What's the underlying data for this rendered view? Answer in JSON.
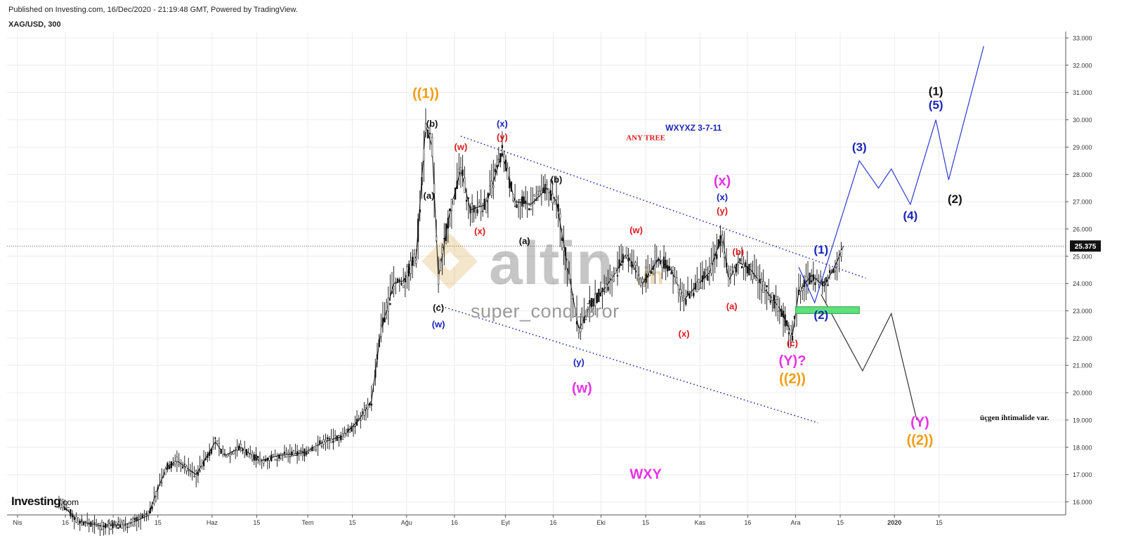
{
  "header": {
    "published": "Published on Investing.com, 16/Dec/2020 - 21:19:48 GMT, Powered by TradingView.",
    "symbol": "XAG/USD, 300"
  },
  "branding": {
    "logo_main": "Investing",
    "logo_suffix": ".com",
    "watermark_brand": "altin",
    "watermark_brand_suffix": ".in",
    "watermark_author": "super_conqueror"
  },
  "colors": {
    "orange": "#f39c12",
    "black": "#111111",
    "blue": "#1a24b8",
    "red": "#e0181e",
    "magenta": "#e633e6",
    "green_zone": "#5ee07a",
    "price_tag": "#111111",
    "watermark_gold": "#d9a441"
  },
  "chart_data": {
    "type": "line",
    "title": "XAG/USD, 300",
    "xlabel": "",
    "ylabel": "",
    "ylim": [
      15.75,
      33.2
    ],
    "x_axis_labels": [
      "Nis",
      "16",
      "May",
      "15",
      "Haz",
      "15",
      "Tem",
      "15",
      "Ağu",
      "16",
      "Eyl",
      "16",
      "Eki",
      "15",
      "Kas",
      "16",
      "Ara",
      "15",
      "2020",
      "15"
    ],
    "y_axis_labels": [
      "16.000",
      "17.000",
      "18.000",
      "19.000",
      "20.000",
      "21.000",
      "22.000",
      "23.000",
      "24.000",
      "25.000",
      "26.000",
      "27.000",
      "28.000",
      "29.000",
      "30.000",
      "31.000",
      "32.000",
      "33.000"
    ],
    "last_price": "25.375",
    "series": [
      {
        "style": "candles (approximate close path)",
        "points": [
          [
            "2020-04-14",
            16.0
          ],
          [
            "2020-04-20",
            15.3
          ],
          [
            "2020-04-28",
            15.1
          ],
          [
            "2020-05-06",
            15.2
          ],
          [
            "2020-05-12",
            15.5
          ],
          [
            "2020-05-15",
            16.5
          ],
          [
            "2020-05-18",
            17.3
          ],
          [
            "2020-05-21",
            17.5
          ],
          [
            "2020-05-27",
            17.0
          ],
          [
            "2020-06-02",
            18.2
          ],
          [
            "2020-06-05",
            17.7
          ],
          [
            "2020-06-10",
            18.0
          ],
          [
            "2020-06-16",
            17.5
          ],
          [
            "2020-06-22",
            17.7
          ],
          [
            "2020-06-30",
            17.8
          ],
          [
            "2020-07-06",
            18.2
          ],
          [
            "2020-07-12",
            18.4
          ],
          [
            "2020-07-17",
            19.0
          ],
          [
            "2020-07-21",
            19.7
          ],
          [
            "2020-07-24",
            22.3
          ],
          [
            "2020-07-28",
            24.0
          ],
          [
            "2020-07-31",
            24.1
          ],
          [
            "2020-08-04",
            25.0
          ],
          [
            "2020-08-07",
            29.8
          ],
          [
            "2020-08-09",
            29.0
          ],
          [
            "2020-08-11",
            24.2
          ],
          [
            "2020-08-14",
            26.3
          ],
          [
            "2020-08-18",
            28.2
          ],
          [
            "2020-08-21",
            26.7
          ],
          [
            "2020-08-26",
            26.9
          ],
          [
            "2020-08-31",
            28.8
          ],
          [
            "2020-09-04",
            27.0
          ],
          [
            "2020-09-09",
            26.9
          ],
          [
            "2020-09-14",
            27.5
          ],
          [
            "2020-09-17",
            27.0
          ],
          [
            "2020-09-21",
            24.3
          ],
          [
            "2020-09-24",
            22.3
          ],
          [
            "2020-09-28",
            23.3
          ],
          [
            "2020-10-02",
            23.8
          ],
          [
            "2020-10-05",
            24.3
          ],
          [
            "2020-10-09",
            25.1
          ],
          [
            "2020-10-14",
            24.0
          ],
          [
            "2020-10-19",
            24.9
          ],
          [
            "2020-10-23",
            24.5
          ],
          [
            "2020-10-27",
            23.4
          ],
          [
            "2020-10-30",
            23.8
          ],
          [
            "2020-11-04",
            24.4
          ],
          [
            "2020-11-08",
            25.8
          ],
          [
            "2020-11-10",
            24.1
          ],
          [
            "2020-11-13",
            24.8
          ],
          [
            "2020-11-17",
            24.5
          ],
          [
            "2020-11-22",
            23.7
          ],
          [
            "2020-11-26",
            23.1
          ],
          [
            "2020-11-30",
            22.1
          ],
          [
            "2020-12-02",
            23.7
          ],
          [
            "2020-12-06",
            24.3
          ],
          [
            "2020-12-10",
            23.9
          ],
          [
            "2020-12-14",
            24.8
          ],
          [
            "2020-12-16",
            25.375
          ]
        ]
      },
      {
        "name": "",
        "style": "blue projection",
        "points": [
          [
            "2020-12-02",
            24.6
          ],
          [
            "2020-12-07",
            23.3
          ],
          [
            "2020-12-21",
            28.5
          ],
          [
            "2020-12-27",
            27.5
          ],
          [
            "2020-12-31",
            28.2
          ],
          [
            "2021-01-06",
            26.9
          ],
          [
            "2021-01-14",
            30.0
          ],
          [
            "2021-01-18",
            27.8
          ],
          [
            "2021-01-29",
            32.7
          ]
        ]
      },
      {
        "name": "",
        "style": "black projection",
        "points": [
          [
            "2020-12-09",
            23.6
          ],
          [
            "2020-12-22",
            20.8
          ],
          [
            "2020-12-31",
            22.9
          ],
          [
            "2021-01-08",
            19.0
          ]
        ]
      },
      {
        "name": "",
        "style": "blue dotted channel top",
        "points": [
          [
            "2020-08-18",
            29.4
          ],
          [
            "2020-12-23",
            24.2
          ]
        ]
      },
      {
        "name": "",
        "style": "blue dotted channel bottom",
        "points": [
          [
            "2020-08-11",
            23.2
          ],
          [
            "2020-12-08",
            18.9
          ]
        ]
      }
    ],
    "annotations": [
      {
        "text": "((1))",
        "color": "orange",
        "x": "2020-08-07",
        "y": 30.8
      },
      {
        "text": "(b)",
        "color": "black",
        "x": "2020-08-09",
        "y": 29.75
      },
      {
        "text": "(a)",
        "color": "black",
        "x": "2020-08-08",
        "y": 27.1
      },
      {
        "text": "(c)",
        "color": "black",
        "x": "2020-08-11",
        "y": 23.0
      },
      {
        "text": "(w)",
        "color": "blue",
        "x": "2020-08-11",
        "y": 22.4
      },
      {
        "text": "(w)",
        "color": "red",
        "x": "2020-08-18",
        "y": 28.9
      },
      {
        "text": "(x)",
        "color": "blue",
        "x": "2020-08-31",
        "y": 29.75
      },
      {
        "text": "(y)",
        "color": "red",
        "x": "2020-08-31",
        "y": 29.25
      },
      {
        "text": "(x)",
        "color": "red",
        "x": "2020-08-24",
        "y": 25.8
      },
      {
        "text": "(a)",
        "color": "black",
        "x": "2020-09-07",
        "y": 25.45
      },
      {
        "text": "(b)",
        "color": "black",
        "x": "2020-09-17",
        "y": 27.7
      },
      {
        "text": "(y)",
        "color": "blue",
        "x": "2020-09-24",
        "y": 21.0
      },
      {
        "text": "(w)",
        "color": "magenta",
        "x": "2020-09-25",
        "y": 20.0
      },
      {
        "text": "ANY TREE",
        "color": "red",
        "x": "2020-10-15",
        "y": 29.25
      },
      {
        "text": "WXYXZ   3-7-11",
        "color": "blue",
        "x": "2020-10-30",
        "y": 29.6
      },
      {
        "text": "(w)",
        "color": "red",
        "x": "2020-10-12",
        "y": 25.85
      },
      {
        "text": "(x)",
        "color": "red",
        "x": "2020-10-27",
        "y": 22.05
      },
      {
        "text": "(x)",
        "color": "magenta",
        "x": "2020-11-08",
        "y": 27.6
      },
      {
        "text": "(x)",
        "color": "blue",
        "x": "2020-11-08",
        "y": 27.05
      },
      {
        "text": "(y)",
        "color": "red",
        "x": "2020-11-08",
        "y": 26.55
      },
      {
        "text": "(b)",
        "color": "red",
        "x": "2020-11-13",
        "y": 25.05
      },
      {
        "text": "(a)",
        "color": "red",
        "x": "2020-11-11",
        "y": 23.05
      },
      {
        "text": "(c)",
        "color": "red",
        "x": "2020-11-30",
        "y": 21.7
      },
      {
        "text": "(Y)?",
        "color": "magenta",
        "x": "2020-11-30",
        "y": 21.0
      },
      {
        "text": "((2))",
        "color": "orange",
        "x": "2020-11-30",
        "y": 20.35
      },
      {
        "text": "(1)",
        "color": "blue",
        "x": "2020-12-09",
        "y": 25.1
      },
      {
        "text": "(2)",
        "color": "blue",
        "x": "2020-12-09",
        "y": 22.7
      },
      {
        "text": "(3)",
        "color": "blue",
        "x": "2020-12-21",
        "y": 28.85
      },
      {
        "text": "(4)",
        "color": "blue",
        "x": "2021-01-06",
        "y": 26.35
      },
      {
        "text": "(1)",
        "color": "black",
        "x": "2021-01-14",
        "y": 30.9
      },
      {
        "text": "(5)",
        "color": "blue",
        "x": "2021-01-14",
        "y": 30.4
      },
      {
        "text": "(2)",
        "color": "black",
        "x": "2021-01-20",
        "y": 26.95
      },
      {
        "text": "(Y)",
        "color": "magenta",
        "x": "2021-01-09",
        "y": 18.75
      },
      {
        "text": "((2))",
        "color": "orange",
        "x": "2021-01-09",
        "y": 18.1
      },
      {
        "text": "WXY",
        "color": "magenta",
        "x": "2020-10-15",
        "y": 16.85
      },
      {
        "text": "üçgen ihtimalide var.",
        "color": "black",
        "x": "2021-01-29",
        "y": 19.0
      }
    ],
    "zones": [
      {
        "name": "support-zone",
        "color": "green_zone",
        "x_from": "2020-12-01",
        "x_to": "2020-12-21",
        "y_from": 22.9,
        "y_to": 23.15
      }
    ],
    "grid": true,
    "legend": "none"
  }
}
